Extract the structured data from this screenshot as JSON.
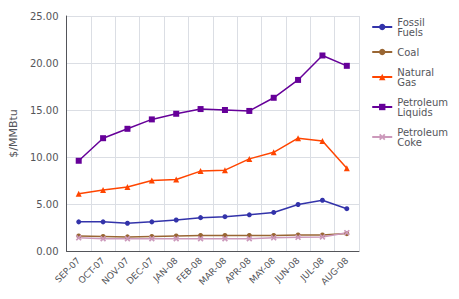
{
  "chart_data": {
    "type": "line",
    "ylabel": "$/MMBtu",
    "categories": [
      "SEP-07",
      "OCT-07",
      "NOV-07",
      "DEC-07",
      "JAN-08",
      "FEB-08",
      "MAR-08",
      "APR-08",
      "MAY-08",
      "JUN-08",
      "JUL-08",
      "AUG-08"
    ],
    "series": [
      {
        "name": "Fossil\nFuels",
        "color": "#3333AA",
        "marker": "circle",
        "values": [
          3.1,
          3.1,
          2.95,
          3.1,
          3.3,
          3.55,
          3.65,
          3.85,
          4.1,
          4.95,
          5.4,
          4.5
        ]
      },
      {
        "name": "Coal",
        "color": "#996633",
        "marker": "circle",
        "values": [
          1.6,
          1.55,
          1.5,
          1.55,
          1.6,
          1.65,
          1.65,
          1.65,
          1.65,
          1.7,
          1.7,
          1.85
        ]
      },
      {
        "name": "Natural\nGas",
        "color": "#FF4500",
        "marker": "triangle",
        "values": [
          6.1,
          6.5,
          6.8,
          7.5,
          7.6,
          8.5,
          8.6,
          9.8,
          10.5,
          12.0,
          11.7,
          8.8
        ]
      },
      {
        "name": "Petroleum\nLiquids",
        "color": "#660099",
        "marker": "square",
        "values": [
          9.6,
          12.0,
          13.0,
          14.0,
          14.6,
          15.1,
          15.0,
          14.9,
          16.3,
          18.2,
          20.8,
          19.7
        ]
      },
      {
        "name": "Petroleum\nCoke",
        "color": "#CC99BB",
        "marker": "x",
        "values": [
          1.4,
          1.3,
          1.3,
          1.3,
          1.3,
          1.3,
          1.3,
          1.3,
          1.4,
          1.45,
          1.5,
          1.95
        ]
      }
    ],
    "ylim": [
      0,
      25
    ],
    "yticks": [
      {
        "value": 0,
        "label": "0.00"
      },
      {
        "value": 5,
        "label": "5.00"
      },
      {
        "value": 10,
        "label": "10.00"
      },
      {
        "value": 15,
        "label": "15.00"
      },
      {
        "value": 20,
        "label": "20.00"
      },
      {
        "value": 25,
        "label": "25.00"
      }
    ],
    "grid": true,
    "legend": "right"
  }
}
